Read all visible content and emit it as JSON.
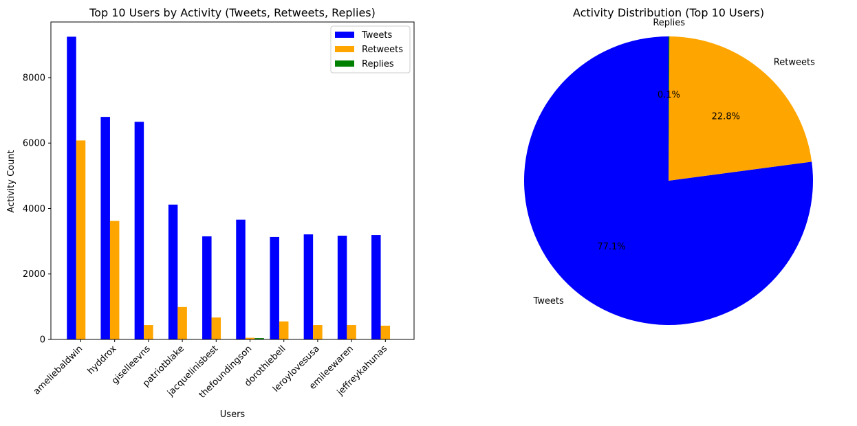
{
  "chart_data": [
    {
      "type": "bar",
      "title": "Top 10 Users by Activity (Tweets, Retweets, Replies)",
      "xlabel": "Users",
      "ylabel": "Activity Count",
      "ylim": [
        0,
        9700
      ],
      "yticks": [
        0,
        2000,
        4000,
        6000,
        8000
      ],
      "grid": false,
      "legend_position": "top-right",
      "categories": [
        "ameliebaldwin",
        "hyddrox",
        "giselleevns",
        "patriotblake",
        "jacquelinisbest",
        "thefoundingson",
        "dorothiebell",
        "leroylovesusa",
        "emileewaren",
        "jeffreykahunas"
      ],
      "series": [
        {
          "name": "Tweets",
          "color": "#0000ff",
          "values": [
            9250,
            6800,
            6650,
            4120,
            3150,
            3660,
            3130,
            3210,
            3170,
            3190
          ]
        },
        {
          "name": "Retweets",
          "color": "#ffa500",
          "values": [
            6080,
            3620,
            440,
            990,
            670,
            50,
            550,
            440,
            440,
            420
          ]
        },
        {
          "name": "Replies",
          "color": "#008000",
          "values": [
            0,
            0,
            0,
            0,
            0,
            40,
            0,
            0,
            0,
            0
          ]
        }
      ]
    },
    {
      "type": "pie",
      "title": "Activity Distribution (Top 10 Users)",
      "start_angle_deg": 90,
      "direction": "counterclockwise",
      "slices": [
        {
          "label": "Tweets",
          "value": 77.1,
          "pct_label": "77.1%",
          "color": "#0000ff"
        },
        {
          "label": "Retweets",
          "value": 22.8,
          "pct_label": "22.8%",
          "color": "#ffa500"
        },
        {
          "label": "Replies",
          "value": 0.1,
          "pct_label": "0.1%",
          "color": "#008000"
        }
      ]
    }
  ]
}
